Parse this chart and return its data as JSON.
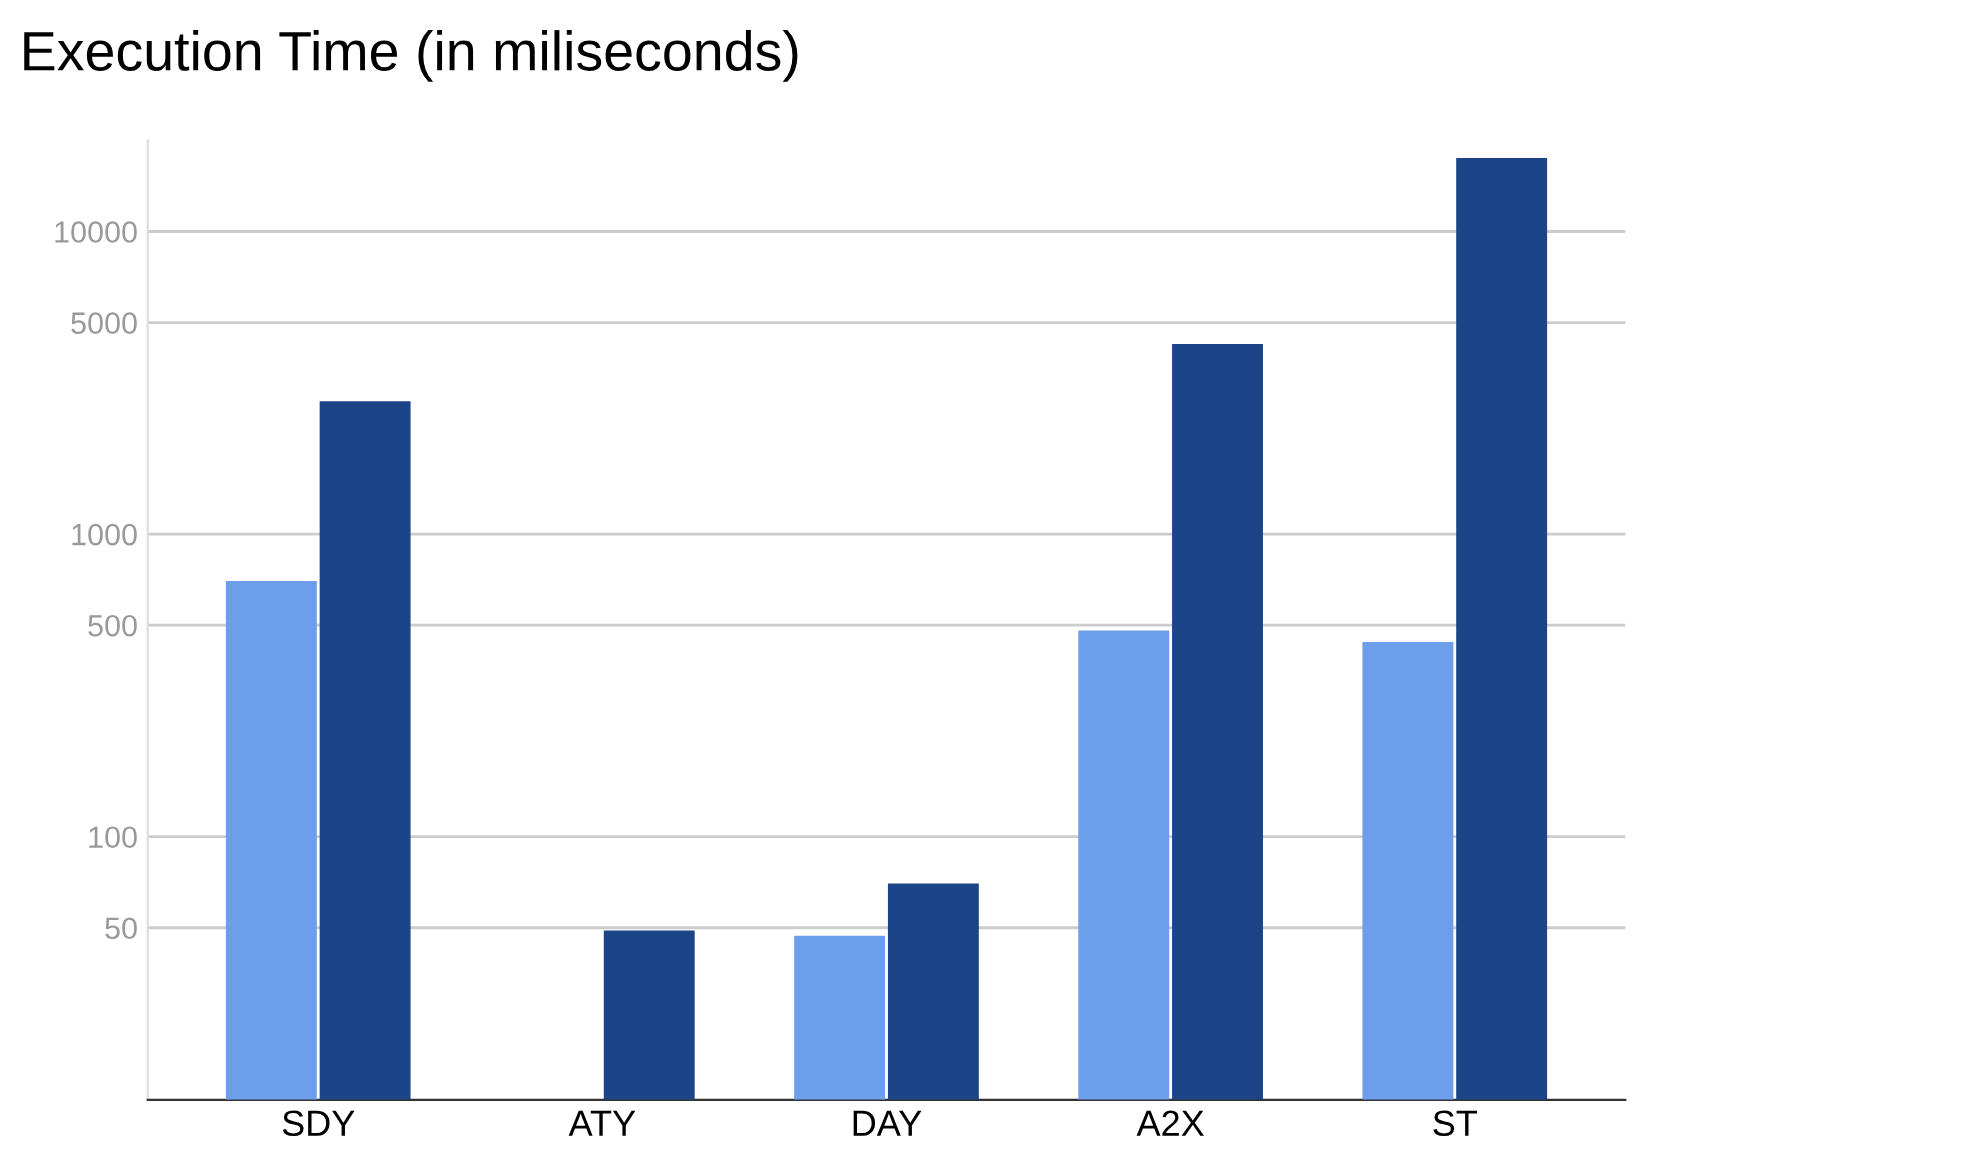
{
  "chart_data": {
    "type": "bar",
    "title": "Execution Time (in miliseconds)",
    "categories": [
      "SDY",
      "ATY",
      "DAY",
      "A2X",
      "ST"
    ],
    "series": [
      {
        "color": "#6d9eeb",
        "values": [
          700,
          null,
          47,
          480,
          440
        ]
      },
      {
        "color": "#1c4587",
        "values": [
          2750,
          49,
          70,
          4250,
          17500
        ]
      }
    ],
    "log": true,
    "ylim": [
      13.5,
      20000
    ],
    "yticks": [
      50,
      100,
      500,
      1000,
      5000,
      10000
    ],
    "grid": "y"
  }
}
